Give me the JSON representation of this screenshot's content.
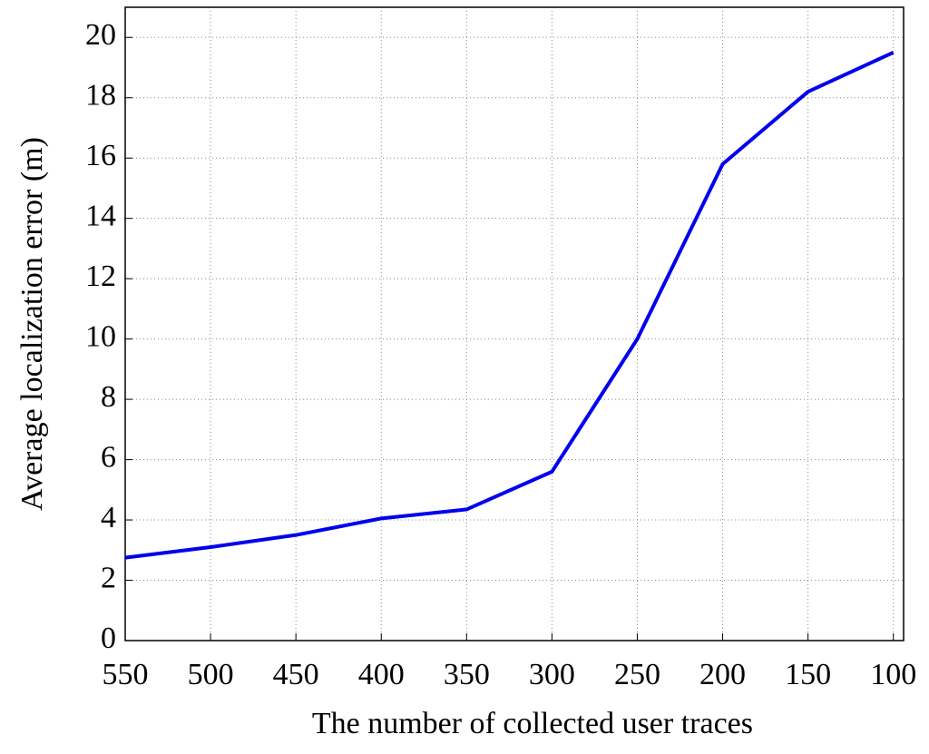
{
  "chart_data": {
    "type": "line",
    "x_label": "The number of collected user traces",
    "y_label": "Average localization error (m)",
    "x": [
      550,
      500,
      450,
      400,
      350,
      300,
      250,
      200,
      150,
      100
    ],
    "values": [
      2.75,
      3.1,
      3.5,
      4.05,
      4.35,
      5.6,
      10.0,
      15.8,
      18.2,
      19.5
    ],
    "color": "#0000ee",
    "xlim": [
      550,
      94
    ],
    "xticks": [
      550,
      500,
      450,
      400,
      350,
      300,
      250,
      200,
      150,
      100
    ],
    "ylim": [
      0,
      21
    ],
    "yticks": [
      0,
      2,
      4,
      6,
      8,
      10,
      12,
      14,
      16,
      18,
      20
    ],
    "grid": true
  }
}
